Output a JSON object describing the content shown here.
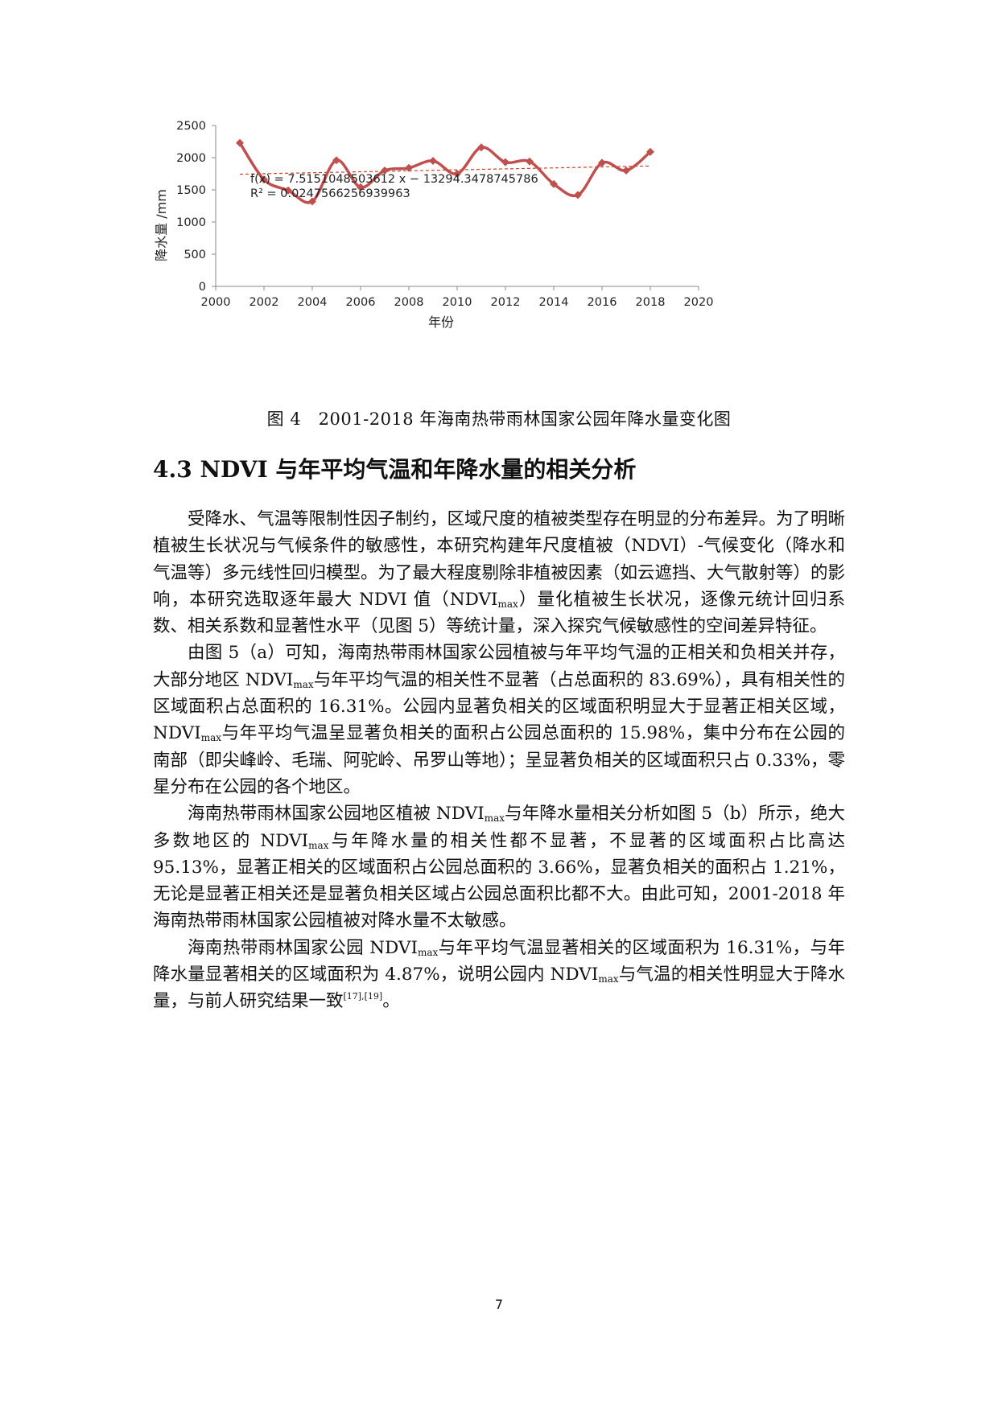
{
  "chart_data": {
    "type": "line",
    "x": [
      2001,
      2002,
      2003,
      2004,
      2005,
      2006,
      2007,
      2008,
      2009,
      2010,
      2011,
      2012,
      2013,
      2014,
      2015,
      2016,
      2017,
      2018
    ],
    "series": [
      {
        "values": [
          2230,
          1660,
          1490,
          1320,
          1960,
          1540,
          1800,
          1840,
          1950,
          1750,
          2160,
          1930,
          1940,
          1590,
          1420,
          1920,
          1800,
          2090
        ],
        "color": "#c0504d"
      }
    ],
    "trendline": {
      "slope": 7.5151048503612,
      "intercept": -13294.3478745786,
      "color": "#d04020",
      "style": "dashed"
    },
    "equation": "f(x) = 7.5151048503612 x − 13294.3478745786",
    "r_squared": "R² = 0.0247566256939963",
    "xlabel": "年份",
    "ylabel": "降水量 /mm",
    "xlim": [
      2000,
      2020
    ],
    "ylim": [
      0,
      2500
    ],
    "xticks": [
      "2000",
      "2002",
      "2004",
      "2006",
      "2008",
      "2010",
      "2012",
      "2014",
      "2016",
      "2018",
      "2020"
    ],
    "yticks": [
      "0",
      "500",
      "1000",
      "1500",
      "2000",
      "2500"
    ],
    "grid": false,
    "marker": "diamond",
    "smooth": true
  },
  "figure": {
    "caption": "图 4　2001-2018 年海南热带雨林国家公园年降水量变化图"
  },
  "section": {
    "heading": "4.3 NDVI 与年平均气温和年降水量的相关分析"
  },
  "paragraphs": {
    "p1": {
      "a": "受降水、气温等限制性因子制约，区域尺度的植被类型存在明显的分布差异。为了明晰植被生长状况与气候条件的敏感性，本研究构建年尺度植被（NDVI）-气候变化（降水和气温等）多元线性回归模型。为了最大程度剔除非植被因素（如云遮挡、大气散射等）的影响，本研究选取逐年最大 NDVI 值（NDVI",
      "sub1": "max",
      "b": "）量化植被生长状况，逐像元统计回归系数、相关系数和显著性水平（见图 5）等统计量，深入探究气候敏感性的空间差异特征。"
    },
    "p2": {
      "a": "由图 5（a）可知，海南热带雨林国家公园植被与年平均气温的正相关和负相关并存，大部分地区 NDVI",
      "sub1": "max",
      "b": "与年平均气温的相关性不显著（占总面积的 83.69%），具有相关性的区域面积占总面积的 16.31%。公园内显著负相关的区域面积明显大于显著正相关区域，NDVI",
      "sub2": "max",
      "c": "与年平均气温呈显著负相关的面积占公园总面积的 15.98%，集中分布在公园的南部（即尖峰岭、毛瑞、阿驼岭、吊罗山等地）；呈显著负相关的区域面积只占 0.33%，零星分布在公园的各个地区。"
    },
    "p3": {
      "a": "海南热带雨林国家公园地区植被 NDVI",
      "sub1": "max",
      "b": "与年降水量相关分析如图 5（b）所示，绝大多数地区的 NDVI",
      "sub2": "max",
      "c": "与年降水量的相关性都不显著，不显著的区域面积占比高达 95.13%，显著正相关的区域面积占公园总面积的 3.66%，显著负相关的面积占 1.21%，无论是显著正相关还是显著负相关区域占公园总面积比都不大。由此可知，2001-2018 年海南热带雨林国家公园植被对降水量不太敏感。"
    },
    "p4": {
      "a": "海南热带雨林国家公园 NDVI",
      "sub1": "max",
      "b": "与年平均气温显著相关的区域面积为 16.31%，与年降水量显著相关的区域面积为 4.87%，说明公园内 NDVI",
      "sub2": "max",
      "c": "与气温的相关性明显大于降水量，与前人研究结果一致",
      "sup": "[17],[19]",
      "d": "。"
    }
  },
  "page": {
    "number": "7"
  }
}
